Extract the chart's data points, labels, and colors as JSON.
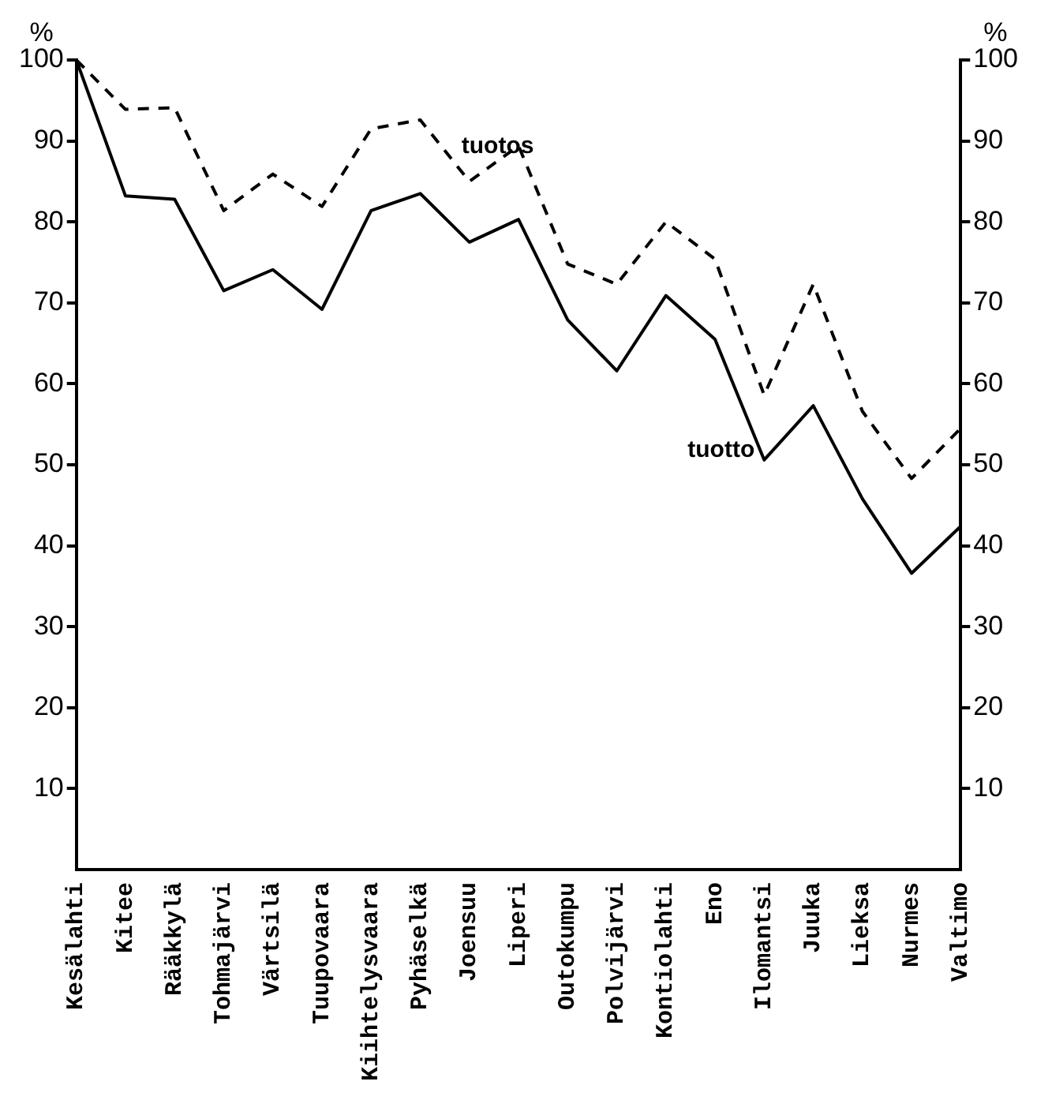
{
  "chart_data": {
    "type": "line",
    "ylabel": "%",
    "y2label": "%",
    "categories": [
      "Kesälahti",
      "Kitee",
      "Rääkkylä",
      "Tohmajärvi",
      "Värtsilä",
      "Tuupovaara",
      "Kiihtelysvaara",
      "Pyhäselkä",
      "Joensuu",
      "Liperi",
      "Outokumpu",
      "Polvijärvi",
      "Kontiolahti",
      "Eno",
      "Ilomantsi",
      "Juuka",
      "Lieksa",
      "Nurmes",
      "Valtimo"
    ],
    "series": [
      {
        "name": "tuotos",
        "color": "#000000",
        "line_style": "dashed",
        "values": [
          100,
          93.9,
          94.1,
          81.4,
          85.9,
          81.9,
          91.5,
          92.6,
          85.0,
          89.4,
          74.8,
          72.3,
          80.0,
          75.4,
          58.6,
          72.3,
          56.6,
          48.3,
          54.5
        ]
      },
      {
        "name": "tuotto",
        "color": "#000000",
        "line_style": "solid",
        "values": [
          100,
          83.2,
          82.8,
          71.5,
          74.1,
          69.2,
          81.4,
          83.5,
          77.5,
          80.3,
          67.9,
          61.6,
          70.9,
          65.5,
          50.6,
          57.3,
          45.8,
          36.6,
          42.4
        ]
      }
    ],
    "ylim": [
      0,
      100
    ],
    "yticks": [
      10,
      20,
      30,
      40,
      50,
      60,
      70,
      80,
      90,
      100
    ],
    "y2lim": [
      0,
      100
    ],
    "y2ticks": [
      10,
      20,
      30,
      40,
      50,
      60,
      70,
      80,
      90,
      100
    ],
    "grid": false,
    "legend": false,
    "marker": "none"
  }
}
